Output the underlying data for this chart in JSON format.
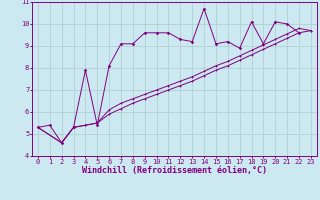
{
  "xlabel": "Windchill (Refroidissement éolien,°C)",
  "bg_color": "#cce8f0",
  "line_color": "#800080",
  "xlim": [
    -0.5,
    23.5
  ],
  "ylim": [
    4,
    11
  ],
  "xticks": [
    0,
    1,
    2,
    3,
    4,
    5,
    6,
    7,
    8,
    9,
    10,
    11,
    12,
    13,
    14,
    15,
    16,
    17,
    18,
    19,
    20,
    21,
    22,
    23
  ],
  "yticks": [
    4,
    5,
    6,
    7,
    8,
    9,
    10,
    11
  ],
  "series1_x": [
    0,
    1,
    2,
    3,
    4,
    5,
    6,
    7,
    8,
    9,
    10,
    11,
    12,
    13,
    14,
    15,
    16,
    17,
    18,
    19,
    20,
    21,
    22
  ],
  "series1_y": [
    5.3,
    5.4,
    4.6,
    5.3,
    7.9,
    5.4,
    8.1,
    9.1,
    9.1,
    9.6,
    9.6,
    9.6,
    9.3,
    9.2,
    10.7,
    9.1,
    9.2,
    8.9,
    10.1,
    9.1,
    10.1,
    10.0,
    9.6
  ],
  "series2_x": [
    0,
    2,
    3,
    4,
    5,
    6,
    7,
    8,
    9,
    10,
    11,
    12,
    13,
    14,
    15,
    16,
    17,
    18,
    19,
    20,
    21,
    22,
    23
  ],
  "series2_y": [
    5.3,
    4.6,
    5.3,
    5.4,
    5.5,
    6.1,
    6.4,
    6.6,
    6.8,
    7.0,
    7.2,
    7.4,
    7.6,
    7.85,
    8.1,
    8.3,
    8.55,
    8.8,
    9.05,
    9.3,
    9.55,
    9.8,
    9.7
  ],
  "series3_x": [
    0,
    2,
    3,
    4,
    5,
    6,
    7,
    8,
    9,
    10,
    11,
    12,
    13,
    14,
    15,
    16,
    17,
    18,
    19,
    20,
    21,
    22,
    23
  ],
  "series3_y": [
    5.3,
    4.6,
    5.3,
    5.4,
    5.5,
    5.9,
    6.15,
    6.4,
    6.6,
    6.8,
    7.0,
    7.2,
    7.4,
    7.65,
    7.9,
    8.1,
    8.35,
    8.6,
    8.85,
    9.1,
    9.35,
    9.6,
    9.7
  ],
  "grid_color": "#aacccc",
  "tick_fontsize": 5.0,
  "xlabel_fontsize": 6.0
}
